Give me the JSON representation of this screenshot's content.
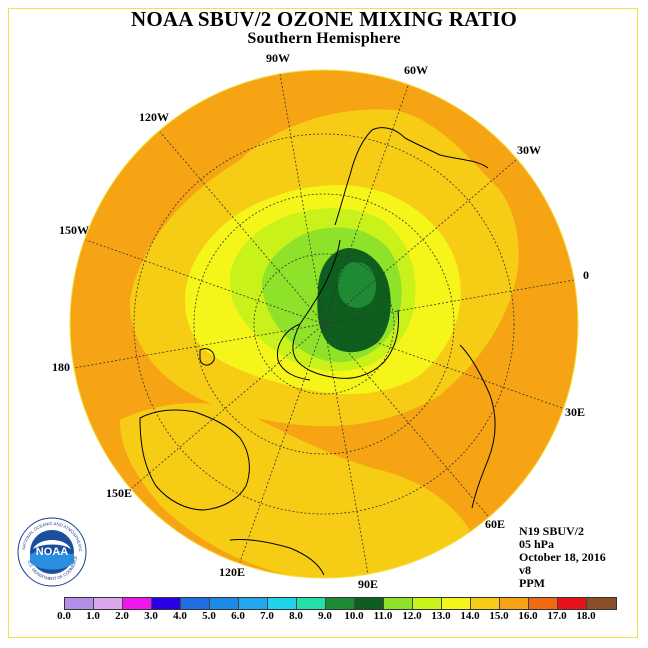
{
  "title": "NOAA SBUV/2 OZONE MIXING RATIO",
  "subtitle": "Southern Hemisphere",
  "longitude_labels": {
    "w90": "90W",
    "w60": "60W",
    "w120": "120W",
    "w30": "30W",
    "w150": "150W",
    "zero": "0",
    "l180": "180",
    "e30": "30E",
    "e150": "150E",
    "e60": "60E",
    "e120": "120E",
    "e90": "90E"
  },
  "info": {
    "satellite": "N19 SBUV/2",
    "level": "05 hPa",
    "date": "October 18, 2016",
    "version": "v8",
    "units": "PPM"
  },
  "logo": {
    "text": "NOAA",
    "ring_text": "NATIONAL OCEANIC AND ATMOSPHERIC ADMINISTRATION",
    "ring_text_bottom": "U.S. DEPARTMENT OF COMMERCE"
  },
  "colorbar": {
    "labels": [
      "0.0",
      "1.0",
      "2.0",
      "3.0",
      "4.0",
      "5.0",
      "6.0",
      "7.0",
      "8.0",
      "9.0",
      "10.0",
      "11.0",
      "12.0",
      "13.0",
      "14.0",
      "15.0",
      "16.0",
      "17.0",
      "18.0"
    ],
    "colors": [
      "#b28fe8",
      "#d9a6ec",
      "#f016f0",
      "#2a00e6",
      "#1f6fe0",
      "#1e8ae6",
      "#22a6f0",
      "#1fd4ea",
      "#22e0a8",
      "#1f8a34",
      "#0e5e1e",
      "#8fe22a",
      "#c8f21a",
      "#f5f51a",
      "#f6cd14",
      "#f6a314",
      "#f06a14",
      "#e6141a",
      "#8a4e28"
    ]
  },
  "field_colors": {
    "c13": "#f5f51a",
    "c12": "#c8f21a",
    "c11": "#8fe22a",
    "c10": "#0e5e1e",
    "c9": "#1f8a34",
    "c14": "#f6cd14",
    "c15": "#f6a314"
  }
}
